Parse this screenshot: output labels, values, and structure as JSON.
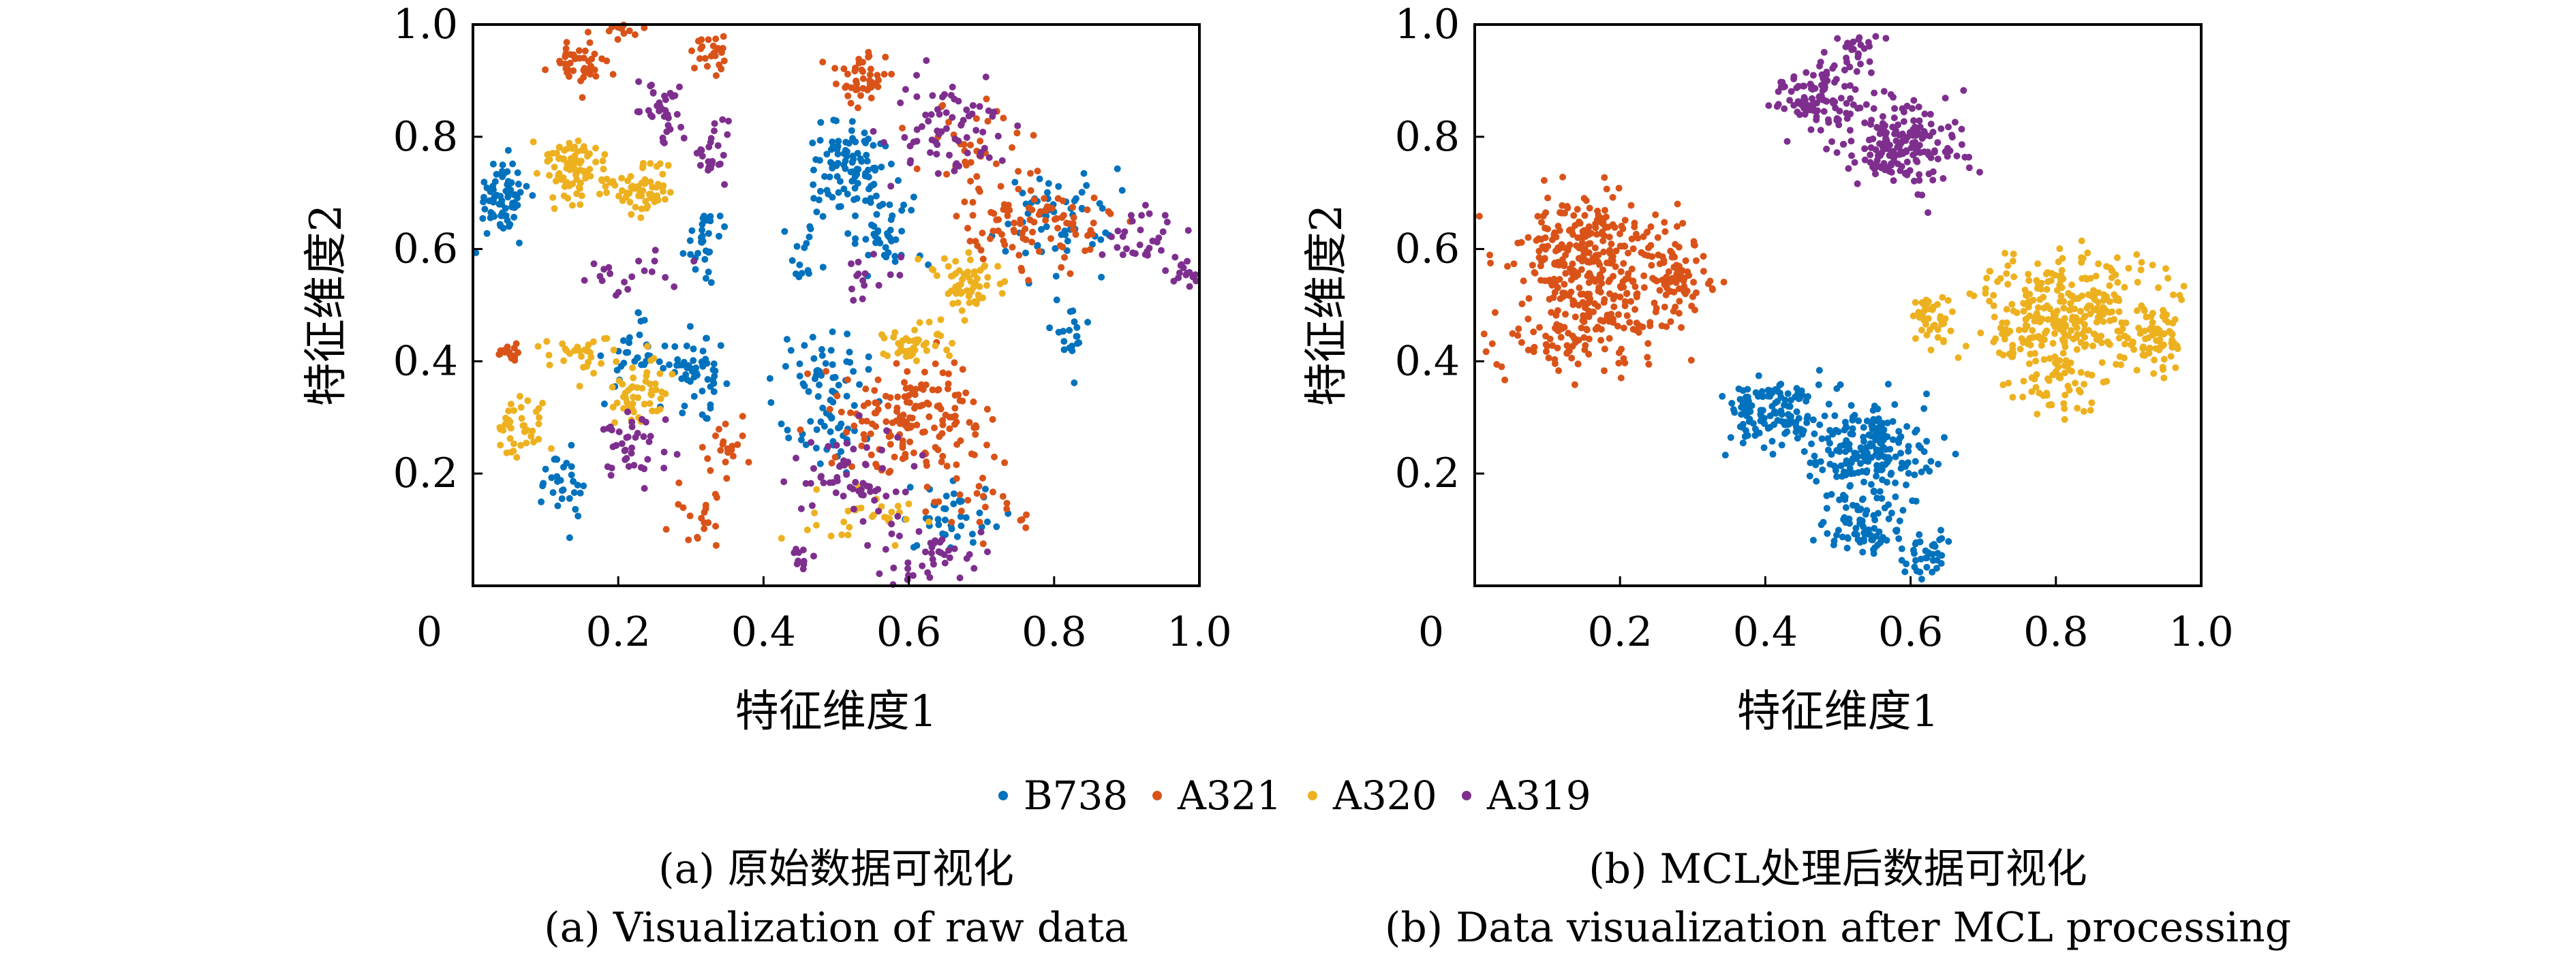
{
  "legend": {
    "items": [
      {
        "name": "B738",
        "color": "#0072BD"
      },
      {
        "name": "A321",
        "color": "#D95319"
      },
      {
        "name": "A320",
        "color": "#EDB120"
      },
      {
        "name": "A319",
        "color": "#7E2F8E"
      }
    ]
  },
  "panels": [
    {
      "caption_cn": "(a) 原始数据可视化",
      "caption_en": "(a) Visualization of raw data"
    },
    {
      "caption_cn": "(b) MCL处理后数据可视化",
      "caption_en": "(b) Data visualization after MCL processing"
    }
  ],
  "chart_data": [
    {
      "type": "scatter",
      "title": "",
      "xlabel": "特征维度1",
      "ylabel": "特征维度2",
      "xlim": [
        0,
        1.0
      ],
      "ylim": [
        0,
        1.0
      ],
      "xticks": [
        "0",
        "0.2",
        "0.4",
        "0.6",
        "0.8",
        "1.0"
      ],
      "yticks": [
        "0.2",
        "0.4",
        "0.6",
        "0.8",
        "1.0"
      ],
      "grid": false,
      "series": [
        {
          "name": "B738",
          "color": "#0072BD",
          "clusters": [
            {
              "x": 0.04,
              "y": 0.69,
              "sx": 0.018,
              "sy": 0.035,
              "n": 70
            },
            {
              "x": 0.32,
              "y": 0.62,
              "sx": 0.015,
              "sy": 0.03,
              "n": 30
            },
            {
              "x": 0.31,
              "y": 0.38,
              "sx": 0.02,
              "sy": 0.03,
              "n": 55
            },
            {
              "x": 0.12,
              "y": 0.18,
              "sx": 0.015,
              "sy": 0.03,
              "n": 30
            },
            {
              "x": 0.22,
              "y": 0.41,
              "sx": 0.02,
              "sy": 0.03,
              "n": 30
            },
            {
              "x": 0.52,
              "y": 0.74,
              "sx": 0.03,
              "sy": 0.04,
              "n": 100
            },
            {
              "x": 0.57,
              "y": 0.63,
              "sx": 0.03,
              "sy": 0.03,
              "n": 40
            },
            {
              "x": 0.48,
              "y": 0.38,
              "sx": 0.03,
              "sy": 0.04,
              "n": 45
            },
            {
              "x": 0.5,
              "y": 0.28,
              "sx": 0.03,
              "sy": 0.03,
              "n": 35
            },
            {
              "x": 0.66,
              "y": 0.12,
              "sx": 0.03,
              "sy": 0.03,
              "n": 40
            },
            {
              "x": 0.8,
              "y": 0.66,
              "sx": 0.04,
              "sy": 0.05,
              "n": 60
            },
            {
              "x": 0.82,
              "y": 0.45,
              "sx": 0.015,
              "sy": 0.03,
              "n": 20
            },
            {
              "x": 0.45,
              "y": 0.58,
              "sx": 0.015,
              "sy": 0.03,
              "n": 15
            }
          ]
        },
        {
          "name": "A321",
          "color": "#D95319",
          "clusters": [
            {
              "x": 0.15,
              "y": 0.93,
              "sx": 0.02,
              "sy": 0.02,
              "n": 45
            },
            {
              "x": 0.21,
              "y": 0.99,
              "sx": 0.02,
              "sy": 0.01,
              "n": 15
            },
            {
              "x": 0.32,
              "y": 0.95,
              "sx": 0.015,
              "sy": 0.02,
              "n": 25
            },
            {
              "x": 0.54,
              "y": 0.91,
              "sx": 0.02,
              "sy": 0.025,
              "n": 45
            },
            {
              "x": 0.61,
              "y": 0.3,
              "sx": 0.05,
              "sy": 0.05,
              "n": 160
            },
            {
              "x": 0.78,
              "y": 0.64,
              "sx": 0.05,
              "sy": 0.04,
              "n": 90
            },
            {
              "x": 0.7,
              "y": 0.78,
              "sx": 0.04,
              "sy": 0.04,
              "n": 40
            },
            {
              "x": 0.05,
              "y": 0.41,
              "sx": 0.01,
              "sy": 0.01,
              "n": 15
            },
            {
              "x": 0.35,
              "y": 0.25,
              "sx": 0.02,
              "sy": 0.02,
              "n": 20
            },
            {
              "x": 0.32,
              "y": 0.12,
              "sx": 0.03,
              "sy": 0.03,
              "n": 20
            },
            {
              "x": 0.7,
              "y": 0.15,
              "sx": 0.03,
              "sy": 0.04,
              "n": 25
            }
          ]
        },
        {
          "name": "A320",
          "color": "#EDB120",
          "clusters": [
            {
              "x": 0.14,
              "y": 0.74,
              "sx": 0.025,
              "sy": 0.03,
              "n": 90
            },
            {
              "x": 0.23,
              "y": 0.71,
              "sx": 0.025,
              "sy": 0.025,
              "n": 60
            },
            {
              "x": 0.14,
              "y": 0.42,
              "sx": 0.025,
              "sy": 0.02,
              "n": 30
            },
            {
              "x": 0.23,
              "y": 0.35,
              "sx": 0.025,
              "sy": 0.03,
              "n": 50
            },
            {
              "x": 0.07,
              "y": 0.28,
              "sx": 0.02,
              "sy": 0.03,
              "n": 40
            },
            {
              "x": 0.68,
              "y": 0.54,
              "sx": 0.025,
              "sy": 0.025,
              "n": 60
            },
            {
              "x": 0.61,
              "y": 0.43,
              "sx": 0.03,
              "sy": 0.02,
              "n": 40
            },
            {
              "x": 0.55,
              "y": 0.12,
              "sx": 0.04,
              "sy": 0.03,
              "n": 30
            }
          ]
        },
        {
          "name": "A319",
          "color": "#7E2F8E",
          "clusters": [
            {
              "x": 0.26,
              "y": 0.85,
              "sx": 0.02,
              "sy": 0.03,
              "n": 35
            },
            {
              "x": 0.33,
              "y": 0.77,
              "sx": 0.015,
              "sy": 0.03,
              "n": 25
            },
            {
              "x": 0.21,
              "y": 0.55,
              "sx": 0.03,
              "sy": 0.02,
              "n": 20
            },
            {
              "x": 0.22,
              "y": 0.24,
              "sx": 0.025,
              "sy": 0.03,
              "n": 40
            },
            {
              "x": 0.65,
              "y": 0.82,
              "sx": 0.04,
              "sy": 0.04,
              "n": 70
            },
            {
              "x": 0.92,
              "y": 0.62,
              "sx": 0.03,
              "sy": 0.03,
              "n": 30
            },
            {
              "x": 0.98,
              "y": 0.56,
              "sx": 0.015,
              "sy": 0.015,
              "n": 15
            },
            {
              "x": 0.52,
              "y": 0.2,
              "sx": 0.04,
              "sy": 0.04,
              "n": 60
            },
            {
              "x": 0.62,
              "y": 0.05,
              "sx": 0.04,
              "sy": 0.03,
              "n": 40
            },
            {
              "x": 0.45,
              "y": 0.05,
              "sx": 0.01,
              "sy": 0.01,
              "n": 10
            },
            {
              "x": 0.55,
              "y": 0.55,
              "sx": 0.02,
              "sy": 0.02,
              "n": 15
            }
          ]
        }
      ]
    },
    {
      "type": "scatter",
      "title": "",
      "xlabel": "特征维度1",
      "ylabel": "特征维度2",
      "xlim": [
        0,
        1.0
      ],
      "ylim": [
        0,
        1.0
      ],
      "xticks": [
        "0",
        "0.2",
        "0.4",
        "0.6",
        "0.8",
        "1.0"
      ],
      "yticks": [
        "0.2",
        "0.4",
        "0.6",
        "0.8",
        "1.0"
      ],
      "grid": false,
      "series": [
        {
          "name": "B738",
          "color": "#0072BD",
          "clusters": [
            {
              "x": 0.41,
              "y": 0.31,
              "sx": 0.03,
              "sy": 0.03,
              "n": 120
            },
            {
              "x": 0.54,
              "y": 0.24,
              "sx": 0.04,
              "sy": 0.04,
              "n": 200
            },
            {
              "x": 0.53,
              "y": 0.11,
              "sx": 0.03,
              "sy": 0.04,
              "n": 80
            },
            {
              "x": 0.62,
              "y": 0.06,
              "sx": 0.02,
              "sy": 0.025,
              "n": 40
            }
          ]
        },
        {
          "name": "A321",
          "color": "#D95319",
          "clusters": [
            {
              "x": 0.16,
              "y": 0.6,
              "sx": 0.05,
              "sy": 0.05,
              "n": 250
            },
            {
              "x": 0.15,
              "y": 0.46,
              "sx": 0.05,
              "sy": 0.04,
              "n": 150
            },
            {
              "x": 0.28,
              "y": 0.55,
              "sx": 0.025,
              "sy": 0.04,
              "n": 80
            }
          ]
        },
        {
          "name": "A320",
          "color": "#EDB120",
          "clusters": [
            {
              "x": 0.82,
              "y": 0.49,
              "sx": 0.06,
              "sy": 0.05,
              "n": 300
            },
            {
              "x": 0.63,
              "y": 0.47,
              "sx": 0.015,
              "sy": 0.025,
              "n": 40
            },
            {
              "x": 0.94,
              "y": 0.44,
              "sx": 0.02,
              "sy": 0.03,
              "n": 60
            },
            {
              "x": 0.8,
              "y": 0.37,
              "sx": 0.03,
              "sy": 0.03,
              "n": 60
            }
          ]
        },
        {
          "name": "A319",
          "color": "#7E2F8E",
          "clusters": [
            {
              "x": 0.47,
              "y": 0.87,
              "sx": 0.03,
              "sy": 0.03,
              "n": 110
            },
            {
              "x": 0.59,
              "y": 0.79,
              "sx": 0.04,
              "sy": 0.04,
              "n": 180
            },
            {
              "x": 0.53,
              "y": 0.96,
              "sx": 0.015,
              "sy": 0.015,
              "n": 20
            }
          ]
        }
      ]
    }
  ]
}
